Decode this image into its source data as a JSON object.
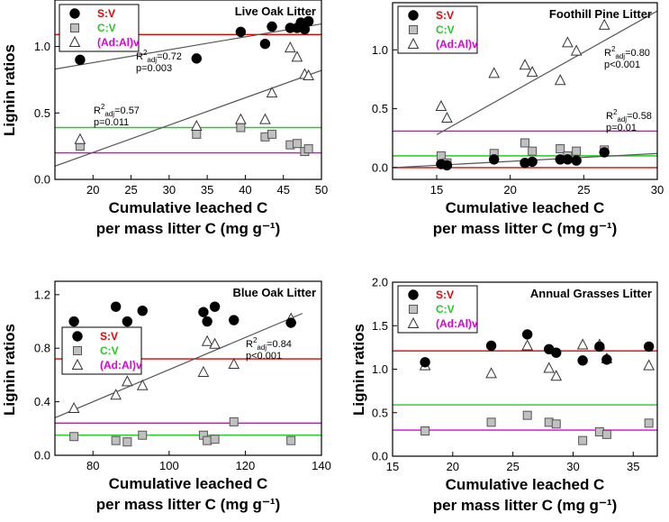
{
  "colors": {
    "red": "#e60000",
    "green": "#22cc22",
    "magenta": "#dd00dd",
    "gray_fill": "#c0c0c0",
    "fit_line": "#555555"
  },
  "legend_labels": [
    "S:V",
    "C:V",
    "(Ad:Al)v"
  ],
  "chart_data": [
    {
      "type": "scatter",
      "title": "Live Oak Litter",
      "xlabel": "Cumulative leached C",
      "xlabel2": "per mass litter C (mg g⁻¹)",
      "ylabel": "Lignin ratios",
      "xlim": [
        15,
        50
      ],
      "ylim": [
        0,
        1.35
      ],
      "xticks": [
        20,
        25,
        30,
        35,
        40,
        45,
        50
      ],
      "yticks": [
        0.0,
        0.5,
        1.0
      ],
      "tick_decimals": 1,
      "legend": {
        "entries": [
          "S:V",
          "C:V",
          "(Ad:Al)v"
        ],
        "placement": "top-left"
      },
      "series": [
        {
          "name": "S:V",
          "marker": "circle",
          "points": [
            [
              18.3,
              0.9
            ],
            [
              33.6,
              0.91
            ],
            [
              39.4,
              1.11
            ],
            [
              42.6,
              1.02
            ],
            [
              43.5,
              1.15
            ],
            [
              45.9,
              1.14
            ],
            [
              46.8,
              1.14
            ],
            [
              47.3,
              1.18
            ],
            [
              47.8,
              1.13
            ],
            [
              48.3,
              1.19
            ]
          ],
          "mean": 1.09
        },
        {
          "name": "C:V",
          "marker": "square",
          "points": [
            [
              18.3,
              0.25
            ],
            [
              33.6,
              0.34
            ],
            [
              39.4,
              0.39
            ],
            [
              42.6,
              0.32
            ],
            [
              43.5,
              0.34
            ],
            [
              45.9,
              0.26
            ],
            [
              46.8,
              0.27
            ],
            [
              47.8,
              0.21
            ],
            [
              48.3,
              0.23
            ]
          ],
          "mean": 0.39
        },
        {
          "name": "(Ad:Al)v",
          "marker": "triangle",
          "points": [
            [
              18.3,
              0.3
            ],
            [
              33.6,
              0.4
            ],
            [
              39.4,
              0.45
            ],
            [
              42.6,
              0.45
            ],
            [
              43.5,
              0.65
            ],
            [
              45.9,
              0.99
            ],
            [
              46.8,
              0.92
            ],
            [
              47.8,
              0.79
            ],
            [
              48.3,
              0.78
            ]
          ],
          "mean": 0.2
        }
      ],
      "fits": [
        {
          "x": [
            15,
            50
          ],
          "y": [
            0.83,
            1.17
          ],
          "r2": "0.72",
          "p": "p=0.003"
        },
        {
          "x": [
            15,
            50
          ],
          "y": [
            0.1,
            0.82
          ],
          "r2": "0.57",
          "p": "p=0.011"
        }
      ]
    },
    {
      "type": "scatter",
      "title": "Foothill Pine Litter",
      "xlabel": "Cumulative leached C",
      "xlabel2": "per mass litter C (mg g⁻¹)",
      "ylabel": "",
      "xlim": [
        12,
        30
      ],
      "ylim": [
        -0.1,
        1.4
      ],
      "xticks": [
        15,
        20,
        25,
        30
      ],
      "yticks": [
        0.0,
        0.5,
        1.0
      ],
      "tick_decimals": 1,
      "legend": {
        "entries": [
          "S:V",
          "C:V",
          "(Ad:Al)v"
        ],
        "placement": "top-left"
      },
      "series": [
        {
          "name": "S:V",
          "marker": "circle",
          "points": [
            [
              15.3,
              0.03
            ],
            [
              15.7,
              0.02
            ],
            [
              18.9,
              0.07
            ],
            [
              21.0,
              0.04
            ],
            [
              21.5,
              0.05
            ],
            [
              23.4,
              0.07
            ],
            [
              23.9,
              0.07
            ],
            [
              24.5,
              0.06
            ],
            [
              26.4,
              0.13
            ]
          ],
          "mean": 0.0
        },
        {
          "name": "C:V",
          "marker": "square",
          "points": [
            [
              15.3,
              0.1
            ],
            [
              15.7,
              0.04
            ],
            [
              18.9,
              0.12
            ],
            [
              21.0,
              0.21
            ],
            [
              21.5,
              0.14
            ],
            [
              23.4,
              0.16
            ],
            [
              23.9,
              0.1
            ],
            [
              24.5,
              0.14
            ],
            [
              26.4,
              0.15
            ]
          ],
          "mean": 0.1
        },
        {
          "name": "(Ad:Al)v",
          "marker": "triangle",
          "points": [
            [
              15.3,
              0.52
            ],
            [
              15.7,
              0.42
            ],
            [
              18.9,
              0.8
            ],
            [
              21.0,
              0.87
            ],
            [
              21.5,
              0.81
            ],
            [
              23.4,
              0.74
            ],
            [
              23.9,
              1.06
            ],
            [
              24.5,
              0.99
            ],
            [
              26.4,
              1.21
            ]
          ],
          "mean": 0.31
        }
      ],
      "fits": [
        {
          "x": [
            15,
            30
          ],
          "y": [
            0.28,
            1.33
          ],
          "r2": "0.80",
          "p": "p<0.001"
        },
        {
          "x": [
            12,
            30
          ],
          "y": [
            0.0,
            0.12
          ],
          "r2": "0.58",
          "p": "p=0.01"
        }
      ]
    },
    {
      "type": "scatter",
      "title": "Blue Oak Litter",
      "xlabel": "Cumulative leached C",
      "xlabel2": "per mass litter C (mg g⁻¹)",
      "ylabel": "Lignin ratios",
      "xlim": [
        70,
        140
      ],
      "ylim": [
        0,
        1.3
      ],
      "xticks": [
        80,
        100,
        120,
        140
      ],
      "yticks": [
        0.0,
        0.4,
        0.8,
        1.2
      ],
      "tick_decimals": 1,
      "legend": {
        "entries": [
          "S:V",
          "C:V",
          "(Ad:Al)v"
        ],
        "placement": "left"
      },
      "series": [
        {
          "name": "S:V",
          "marker": "circle",
          "points": [
            [
              75,
              1.0
            ],
            [
              86,
              1.11
            ],
            [
              89,
              1.0
            ],
            [
              93,
              1.08
            ],
            [
              109,
              1.07
            ],
            [
              110,
              1.0
            ],
            [
              112,
              1.11
            ],
            [
              117,
              1.01
            ],
            [
              132,
              0.99
            ]
          ],
          "mean": 0.72
        },
        {
          "name": "C:V",
          "marker": "square",
          "points": [
            [
              75,
              0.14
            ],
            [
              86,
              0.11
            ],
            [
              89,
              0.1
            ],
            [
              93,
              0.15
            ],
            [
              109,
              0.15
            ],
            [
              110,
              0.11
            ],
            [
              112,
              0.12
            ],
            [
              117,
              0.25
            ],
            [
              132,
              0.11
            ]
          ],
          "mean": 0.15
        },
        {
          "name": "(Ad:Al)v",
          "marker": "triangle",
          "points": [
            [
              75,
              0.35
            ],
            [
              86,
              0.45
            ],
            [
              89,
              0.55
            ],
            [
              93,
              0.52
            ],
            [
              109,
              0.62
            ],
            [
              110,
              0.85
            ],
            [
              112,
              0.83
            ],
            [
              117,
              0.68
            ],
            [
              132,
              1.02
            ]
          ],
          "mean": 0.24
        }
      ],
      "fits": [
        {
          "x": [
            70,
            135
          ],
          "y": [
            0.28,
            1.06
          ],
          "r2": "0.84",
          "p": "p<0.001"
        }
      ]
    },
    {
      "type": "scatter",
      "title": "Annual Grasses Litter",
      "xlabel": "Cumulative leached C",
      "xlabel2": "per mass litter C (mg g⁻¹)",
      "ylabel": "Lignin ratios",
      "xlim": [
        15,
        37
      ],
      "ylim": [
        0,
        2.0
      ],
      "xticks": [
        15,
        20,
        25,
        30,
        35
      ],
      "yticks": [
        0.0,
        0.5,
        1.0,
        1.5,
        2.0
      ],
      "tick_decimals": 1,
      "legend": {
        "entries": [
          "S:V",
          "C:V",
          "(Ad:Al)v"
        ],
        "placement": "top-left"
      },
      "series": [
        {
          "name": "S:V",
          "marker": "circle",
          "points": [
            [
              17.7,
              1.08
            ],
            [
              23.2,
              1.27
            ],
            [
              26.2,
              1.4
            ],
            [
              28.0,
              1.23
            ],
            [
              28.6,
              1.19
            ],
            [
              30.8,
              1.1
            ],
            [
              32.2,
              1.26
            ],
            [
              32.8,
              1.11
            ],
            [
              36.3,
              1.26
            ]
          ],
          "mean": 1.21
        },
        {
          "name": "C:V",
          "marker": "square",
          "points": [
            [
              17.7,
              0.29
            ],
            [
              23.2,
              0.39
            ],
            [
              26.2,
              0.47
            ],
            [
              28.0,
              0.39
            ],
            [
              28.6,
              0.37
            ],
            [
              30.8,
              0.18
            ],
            [
              32.2,
              0.28
            ],
            [
              32.8,
              0.25
            ],
            [
              36.3,
              0.38
            ]
          ],
          "mean": 0.59
        },
        {
          "name": "(Ad:Al)v",
          "marker": "triangle",
          "points": [
            [
              17.7,
              1.04
            ],
            [
              23.2,
              0.95
            ],
            [
              26.2,
              1.27
            ],
            [
              28.0,
              1.01
            ],
            [
              28.6,
              0.92
            ],
            [
              30.8,
              1.28
            ],
            [
              32.2,
              1.28
            ],
            [
              32.8,
              1.12
            ],
            [
              36.3,
              1.04
            ]
          ],
          "mean": 0.3
        }
      ],
      "fits": []
    }
  ]
}
